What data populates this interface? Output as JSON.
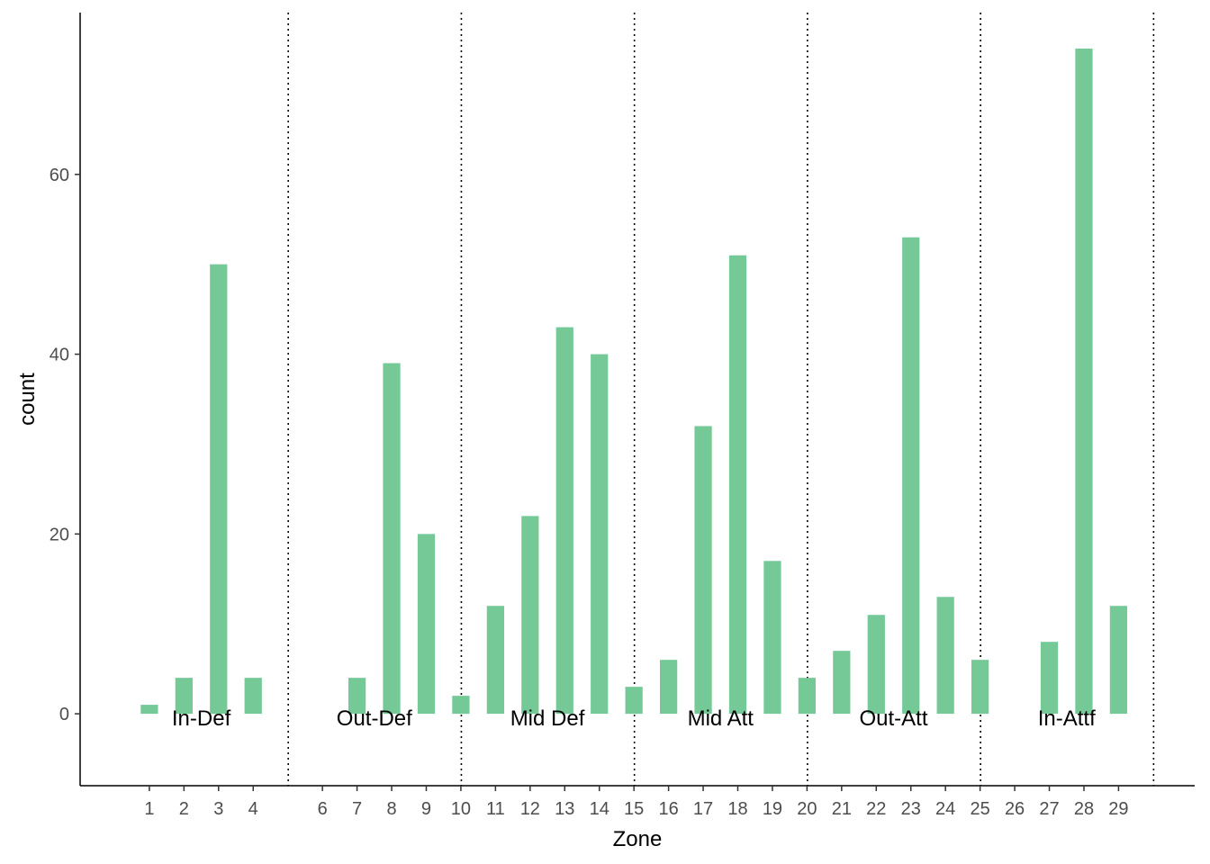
{
  "chart_data": {
    "type": "bar",
    "xlabel": "Zone",
    "ylabel": "count",
    "ylim": [
      -8,
      78
    ],
    "xlim": [
      -1,
      31.2
    ],
    "yticks": [
      0,
      20,
      40,
      60
    ],
    "tick_labels": [
      "1",
      "2",
      "3",
      "4",
      "6",
      "7",
      "8",
      "9",
      "10",
      "11",
      "12",
      "13",
      "14",
      "15",
      "16",
      "17",
      "18",
      "19",
      "20",
      "21",
      "22",
      "23",
      "24",
      "25",
      "26",
      "27",
      "28",
      "29"
    ],
    "categories": [
      1,
      2,
      3,
      4,
      7,
      8,
      9,
      10,
      11,
      12,
      13,
      14,
      15,
      16,
      17,
      18,
      19,
      20,
      21,
      22,
      23,
      24,
      25,
      27,
      28,
      29
    ],
    "values": [
      1,
      4,
      50,
      4,
      4,
      39,
      20,
      2,
      12,
      22,
      43,
      40,
      3,
      6,
      32,
      51,
      17,
      4,
      7,
      11,
      53,
      13,
      6,
      8,
      74,
      12
    ],
    "bar_color": "#74c997",
    "grid": false,
    "section_boundaries": [
      5,
      10,
      15,
      20,
      25,
      30
    ],
    "section_labels": [
      {
        "label": "In-Def",
        "x": 2.5
      },
      {
        "label": "Out-Def",
        "x": 7.5
      },
      {
        "label": "Mid Def",
        "x": 12.5
      },
      {
        "label": "Mid Att",
        "x": 17.5
      },
      {
        "label": "Out-Att",
        "x": 22.5
      },
      {
        "label": "In-Attf",
        "x": 27.5
      }
    ]
  }
}
